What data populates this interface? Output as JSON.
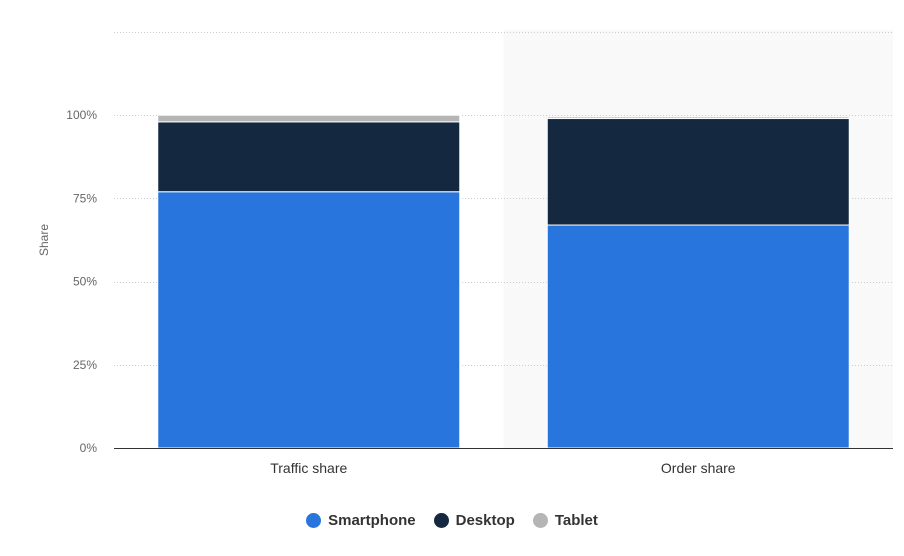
{
  "chart_data": {
    "type": "bar",
    "stacked": true,
    "categories": [
      "Traffic share",
      "Order share"
    ],
    "series": [
      {
        "name": "Smartphone",
        "color": "#2876dd",
        "values": [
          77,
          67
        ]
      },
      {
        "name": "Desktop",
        "color": "#14283f",
        "values": [
          21,
          32
        ]
      },
      {
        "name": "Tablet",
        "color": "#b5b5b5",
        "values": [
          2,
          0.5
        ]
      }
    ],
    "ylabel": "Share",
    "xlabel": "",
    "ylim": [
      0,
      125
    ],
    "yticks": [
      {
        "value": 0,
        "label": "0%"
      },
      {
        "value": 25,
        "label": "25%"
      },
      {
        "value": 50,
        "label": "50%"
      },
      {
        "value": 75,
        "label": "75%"
      },
      {
        "value": 100,
        "label": "100%"
      },
      {
        "value": 125,
        "label": ""
      }
    ],
    "highlighted_category": "Order share",
    "highlight_color": "#f9f9fa",
    "grid": true,
    "legend_position": "bottom-center"
  }
}
